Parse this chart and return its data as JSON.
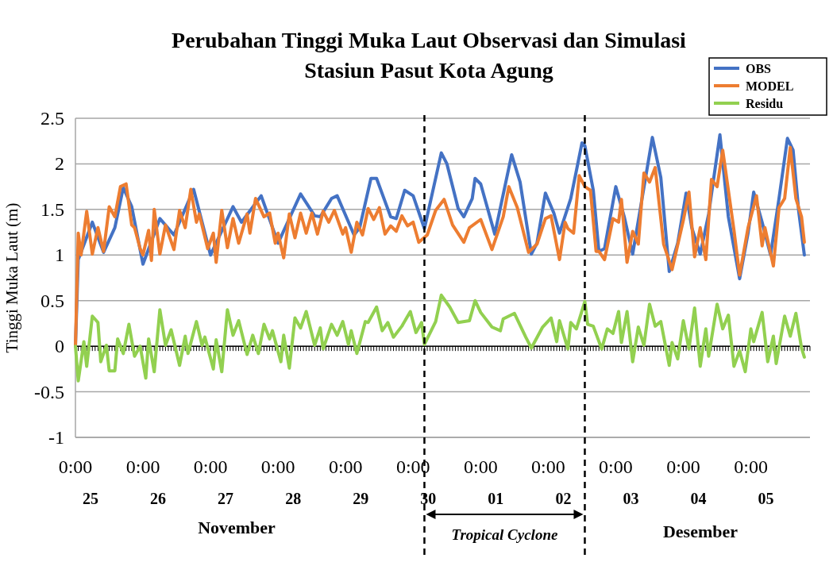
{
  "chart_data": {
    "type": "line",
    "title": "Perubahan Tinggi Muka Laut Observasi dan Simulasi\nStasiun Pasut Kota Agung",
    "ylabel": "Tinggi Muka Laut (m)",
    "xlim": [
      "--11-25T00:00",
      "--12-05T21:00"
    ],
    "xticks": [
      {
        "value": "--11-25T00:00",
        "label": "0:00\n25"
      },
      {
        "value": "--11-26T00:00",
        "label": "0:00\n26"
      },
      {
        "value": "--11-27T00:00",
        "label": "0:00\n27"
      },
      {
        "value": "--11-28T00:00",
        "label": "0:00\n28"
      },
      {
        "value": "--11-29T00:00",
        "label": "0:00\n29"
      },
      {
        "value": "--11-30T00:00",
        "label": "0:00\n30"
      },
      {
        "value": "--12-01T00:00",
        "label": "0:00\n01"
      },
      {
        "value": "--12-02T00:00",
        "label": "0:00\n02"
      },
      {
        "value": "--12-03T00:00",
        "label": "0:00\n03"
      },
      {
        "value": "--12-04T00:00",
        "label": "0:00\n04"
      },
      {
        "value": "--12-05T00:00",
        "label": "0:00\n05"
      }
    ],
    "ylim": [
      -1,
      2.5
    ],
    "yticks": [
      -1,
      -0.5,
      0,
      0.5,
      1,
      1.5,
      2,
      2.5
    ],
    "grid": "y",
    "legend": "top right",
    "line_style": "solid",
    "marker": "none",
    "annotations": [
      "November",
      "Desember",
      "Tropical Cyclone"
    ],
    "ref_lines": [
      {
        "axis": "x",
        "value": "--11-30T04:00",
        "line_style": "dashed",
        "color": "#000000"
      },
      {
        "axis": "x",
        "value": "--12-02T13:00",
        "line_style": "dashed",
        "color": "#000000"
      }
    ],
    "series": [
      {
        "name": "OBS",
        "color": "#4472c4",
        "x": [
          "--11-25T00:00",
          "--11-25T01:00",
          "--11-25T06:00",
          "--11-25T10:00",
          "--11-25T14:00",
          "--11-25T17:00",
          "--11-25T20:00",
          "--11-26T00:00",
          "--11-26T06:00",
          "--11-26T11:00",
          "--11-26T18:00",
          "--11-27T00:00",
          "--11-27T08:00",
          "--11-27T11:00",
          "--11-27T18:00",
          "--11-28T00:00",
          "--11-28T08:00",
          "--11-28T13:00",
          "--11-28T15:00",
          "--11-28T19:00",
          "--11-28T21:00",
          "--11-29T03:00",
          "--11-29T05:00",
          "--11-29T09:00",
          "--11-29T11:00",
          "--11-29T16:00",
          "--11-29T18:00",
          "--11-29T21:00",
          "--11-30T00:00",
          "--11-30T04:00",
          "--11-30T10:00",
          "--11-30T12:00",
          "--11-30T16:00",
          "--11-30T18:00",
          "--11-30T21:00",
          "--11-30T22:00",
          "--12-01T00:00",
          "--12-01T05:00",
          "--12-01T11:00",
          "--12-01T14:00",
          "--12-01T18:00",
          "--12-01T20:00",
          "--12-01T23:00",
          "--12-02T02:00",
          "--12-02T04:00",
          "--12-02T08:00",
          "--12-02T12:00",
          "--12-02T13:00",
          "--12-02T16:00",
          "--12-02T18:00",
          "--12-02T20:00",
          "--12-03T00:00",
          "--12-03T03:00",
          "--12-03T06:00",
          "--12-03T13:00",
          "--12-03T16:00",
          "--12-03T19:00",
          "--12-03T22:00",
          "--12-04T01:00",
          "--12-04T03:00",
          "--12-04T06:00",
          "--12-04T09:00",
          "--12-04T13:00",
          "--12-04T16:00",
          "--12-04T20:00",
          "--12-04T23:00",
          "--12-05T01:00",
          "--12-05T04:00",
          "--12-05T07:00",
          "--12-05T10:00",
          "--12-05T13:00",
          "--12-05T15:00",
          "--12-05T17:00",
          "--12-05T19:00"
        ],
        "values": [
          0,
          0.95,
          1.36,
          1.03,
          1.3,
          1.74,
          1.53,
          0.9,
          1.4,
          1.22,
          1.72,
          1.0,
          1.53,
          1.36,
          1.65,
          1.13,
          1.67,
          1.43,
          1.42,
          1.62,
          1.65,
          1.22,
          1.3,
          1.84,
          1.84,
          1.42,
          1.4,
          1.71,
          1.65,
          1.29,
          2.12,
          2.0,
          1.51,
          1.42,
          1.62,
          1.84,
          1.78,
          1.23,
          2.1,
          1.8,
          1.01,
          1.13,
          1.68,
          1.46,
          1.24,
          1.62,
          2.23,
          2.2,
          1.71,
          1.04,
          1.07,
          1.75,
          1.42,
          1.01,
          2.29,
          1.85,
          0.82,
          1.13,
          1.68,
          1.3,
          1.01,
          1.45,
          2.32,
          1.42,
          0.74,
          1.24,
          1.69,
          1.36,
          1.0,
          1.62,
          2.28,
          2.15,
          1.48,
          1.0
        ]
      },
      {
        "name": "MODEL",
        "color": "#ed7d31",
        "x": [
          "--11-25T00:00",
          "--11-25T01:00",
          "--11-25T02:00",
          "--11-25T04:00",
          "--11-25T06:00",
          "--11-25T08:00",
          "--11-25T10:00",
          "--11-25T12:00",
          "--11-25T14:00",
          "--11-25T16:00",
          "--11-25T18:00",
          "--11-25T20:00",
          "--11-25T21:00",
          "--11-25T23:00",
          "--11-26T00:00",
          "--11-26T02:00",
          "--11-26T03:00",
          "--11-26T04:00",
          "--11-26T06:00",
          "--11-26T08:00",
          "--11-26T11:00",
          "--11-26T13:00",
          "--11-26T15:00",
          "--11-26T17:00",
          "--11-26T19:00",
          "--11-26T20:00",
          "--11-26T23:00",
          "--11-27T01:00",
          "--11-27T02:00",
          "--11-27T04:00",
          "--11-27T06:00",
          "--11-27T08:00",
          "--11-27T10:00",
          "--11-27T13:00",
          "--11-27T14:00",
          "--11-27T16:00",
          "--11-27T19:00",
          "--11-27T21:00",
          "--11-27T23:00",
          "--11-28T00:00",
          "--11-28T02:00",
          "--11-28T04:00",
          "--11-28T06:00",
          "--11-28T08:00",
          "--11-28T10:00",
          "--11-28T12:00",
          "--11-28T14:00",
          "--11-28T16:00",
          "--11-28T18:00",
          "--11-28T20:00",
          "--11-28T23:00",
          "--11-29T00:00",
          "--11-29T02:00",
          "--11-29T04:00",
          "--11-29T06:00",
          "--11-29T08:00",
          "--11-29T10:00",
          "--11-29T12:00",
          "--11-29T14:00",
          "--11-29T16:00",
          "--11-29T18:00",
          "--11-29T20:00",
          "--11-29T22:00",
          "--11-30T00:00",
          "--11-30T02:00",
          "--11-30T05:00",
          "--11-30T08:00",
          "--11-30T11:00",
          "--11-30T14:00",
          "--11-30T18:00",
          "--11-30T20:00",
          "--12-01T00:00",
          "--12-01T04:00",
          "--12-01T08:00",
          "--12-01T10:00",
          "--12-01T13:00",
          "--12-01T17:00",
          "--12-01T20:00",
          "--12-01T23:00",
          "--12-02T01:00",
          "--12-02T04:00",
          "--12-02T06:00",
          "--12-02T07:00",
          "--12-02T09:00",
          "--12-02T11:00",
          "--12-02T13:00",
          "--12-02T15:00",
          "--12-02T17:00",
          "--12-02T18:00",
          "--12-02T20:00",
          "--12-02T23:00",
          "--12-03T01:00",
          "--12-03T02:00",
          "--12-03T04:00",
          "--12-03T06:00",
          "--12-03T08:00",
          "--12-03T10:00",
          "--12-03T12:00",
          "--12-03T14:00",
          "--12-03T17:00",
          "--12-03T20:00",
          "--12-04T00:00",
          "--12-04T02:00",
          "--12-04T04:00",
          "--12-04T06:00",
          "--12-04T08:00",
          "--12-04T10:00",
          "--12-04T12:00",
          "--12-04T14:00",
          "--12-04T18:00",
          "--12-04T20:00",
          "--12-04T23:00",
          "--12-05T02:00",
          "--12-05T04:00",
          "--12-05T05:00",
          "--12-05T08:00",
          "--12-05T10:00",
          "--12-05T12:00",
          "--12-05T14:00",
          "--12-05T16:00",
          "--12-05T18:00",
          "--12-05T19:00"
        ],
        "values": [
          0,
          1.24,
          1.0,
          1.48,
          1.01,
          1.3,
          1.04,
          1.53,
          1.42,
          1.75,
          1.78,
          1.33,
          1.3,
          1.07,
          1.0,
          1.27,
          0.94,
          1.5,
          1.01,
          1.33,
          1.06,
          1.49,
          1.3,
          1.72,
          1.36,
          1.45,
          1.07,
          1.24,
          0.92,
          1.49,
          1.08,
          1.4,
          1.13,
          1.45,
          1.24,
          1.62,
          1.42,
          1.46,
          1.13,
          1.24,
          0.97,
          1.45,
          1.19,
          1.46,
          1.24,
          1.46,
          1.23,
          1.48,
          1.36,
          1.49,
          1.23,
          1.3,
          1.03,
          1.36,
          1.22,
          1.51,
          1.39,
          1.52,
          1.23,
          1.32,
          1.26,
          1.43,
          1.32,
          1.36,
          1.14,
          1.22,
          1.49,
          1.61,
          1.33,
          1.14,
          1.3,
          1.39,
          1.06,
          1.42,
          1.75,
          1.52,
          1.03,
          1.12,
          1.4,
          1.43,
          0.95,
          1.36,
          1.29,
          1.24,
          1.87,
          1.75,
          1.71,
          1.04,
          1.04,
          0.95,
          1.4,
          1.36,
          1.61,
          0.92,
          1.26,
          1.12,
          1.9,
          1.8,
          1.96,
          1.12,
          0.84,
          1.38,
          1.69,
          0.98,
          1.3,
          0.95,
          1.83,
          1.75,
          2.15,
          1.27,
          0.78,
          1.3,
          1.65,
          1.1,
          1.3,
          0.88,
          1.52,
          1.62,
          2.18,
          1.62,
          1.42,
          1.14
        ]
      },
      {
        "name": "Residu",
        "color": "#92d050",
        "x": [
          "--11-25T00:00",
          "--11-25T01:00",
          "--11-25T03:00",
          "--11-25T04:00",
          "--11-25T06:00",
          "--11-25T08:00",
          "--11-25T09:00",
          "--11-25T11:00",
          "--11-25T12:00",
          "--11-25T14:00",
          "--11-25T15:00",
          "--11-25T17:00",
          "--11-25T19:00",
          "--11-25T21:00",
          "--11-25T23:00",
          "--11-26T01:00",
          "--11-26T02:00",
          "--11-26T04:00",
          "--11-26T06:00",
          "--11-26T08:00",
          "--11-26T10:00",
          "--11-26T13:00",
          "--11-26T15:00",
          "--11-26T16:00",
          "--11-26T19:00",
          "--11-26T21:00",
          "--11-26T22:00",
          "--11-27T01:00",
          "--11-27T02:00",
          "--11-27T04:00",
          "--11-27T06:00",
          "--11-27T08:00",
          "--11-27T10:00",
          "--11-27T13:00",
          "--11-27T15:00",
          "--11-27T17:00",
          "--11-27T19:00",
          "--11-27T21:00",
          "--11-27T22:00",
          "--11-28T01:00",
          "--11-28T02:00",
          "--11-28T04:00",
          "--11-28T06:00",
          "--11-28T08:00",
          "--11-28T10:00",
          "--11-28T13:00",
          "--11-28T15:00",
          "--11-28T16:00",
          "--11-28T19:00",
          "--11-28T21:00",
          "--11-28T23:00",
          "--11-29T01:00",
          "--11-29T02:00",
          "--11-29T04:00",
          "--11-29T07:00",
          "--11-29T08:00",
          "--11-29T11:00",
          "--11-29T13:00",
          "--11-29T15:00",
          "--11-29T17:00",
          "--11-29T20:00",
          "--11-29T23:00",
          "--11-30T01:00",
          "--11-30T03:00",
          "--11-30T04:00",
          "--11-30T08:00",
          "--11-30T10:00",
          "--11-30T13:00",
          "--11-30T16:00",
          "--11-30T20:00",
          "--11-30T22:00",
          "--12-01T00:00",
          "--12-01T04:00",
          "--12-01T07:00",
          "--12-01T08:00",
          "--12-01T12:00",
          "--12-01T16:00",
          "--12-01T18:00",
          "--12-01T22:00",
          "--12-02T01:00",
          "--12-02T03:00",
          "--12-02T04:00",
          "--12-02T07:00",
          "--12-02T08:00",
          "--12-02T10:00",
          "--12-02T13:00",
          "--12-02T14:00",
          "--12-02T16:00",
          "--12-02T19:00",
          "--12-02T21:00",
          "--12-02T23:00",
          "--12-03T01:00",
          "--12-03T02:00",
          "--12-03T04:00",
          "--12-03T06:00",
          "--12-03T08:00",
          "--12-03T10:00",
          "--12-03T12:00",
          "--12-03T14:00",
          "--12-03T16:00",
          "--12-03T19:00",
          "--12-03T20:00",
          "--12-03T22:00",
          "--12-04T00:00",
          "--12-04T02:00",
          "--12-04T04:00",
          "--12-04T06:00",
          "--12-04T08:00",
          "--12-04T09:00",
          "--12-04T12:00",
          "--12-04T14:00",
          "--12-04T16:00",
          "--12-04T18:00",
          "--12-04T20:00",
          "--12-04T22:00",
          "--12-05T00:00",
          "--12-05T01:00",
          "--12-05T04:00",
          "--12-05T06:00",
          "--12-05T08:00",
          "--12-05T09:00",
          "--12-05T12:00",
          "--12-05T14:00",
          "--12-05T16:00",
          "--12-05T18:00",
          "--12-05T19:00"
        ],
        "values": [
          0,
          -0.38,
          0.05,
          -0.22,
          0.33,
          0.26,
          -0.17,
          0.01,
          -0.27,
          -0.27,
          0.08,
          -0.08,
          0.24,
          -0.11,
          0,
          -0.35,
          0.08,
          -0.28,
          0.4,
          0.01,
          0.18,
          -0.21,
          0.11,
          -0.08,
          0.27,
          0.01,
          0.1,
          -0.25,
          0.07,
          -0.28,
          0.4,
          0.12,
          0.28,
          -0.09,
          0.12,
          -0.08,
          0.24,
          0.08,
          0.17,
          -0.17,
          0.12,
          -0.24,
          0.31,
          0.2,
          0.38,
          0.01,
          0.2,
          -0.03,
          0.24,
          0.12,
          0.27,
          0.02,
          0.17,
          -0.08,
          0.27,
          0.26,
          0.43,
          0.17,
          0.26,
          0.1,
          0.22,
          0.38,
          0.15,
          0.26,
          0.02,
          0.27,
          0.56,
          0.43,
          0.26,
          0.28,
          0.5,
          0.37,
          0.21,
          0.17,
          0.3,
          0.36,
          0.1,
          -0.02,
          0.21,
          0.31,
          0.05,
          0.28,
          -0.03,
          0.26,
          0.19,
          0.49,
          0.24,
          0.22,
          -0.03,
          0.19,
          0.14,
          0.38,
          0.04,
          0.38,
          -0.17,
          0.21,
          0.01,
          0.46,
          0.22,
          0.27,
          -0.21,
          0.04,
          -0.14,
          0.28,
          -0.03,
          0.42,
          -0.22,
          0.19,
          -0.11,
          0.46,
          0.19,
          0.34,
          -0.22,
          -0.05,
          -0.28,
          0.19,
          0.05,
          0.37,
          -0.17,
          0.11,
          -0.19,
          0.33,
          0.11,
          0.36,
          -0.02,
          -0.12
        ]
      }
    ]
  }
}
